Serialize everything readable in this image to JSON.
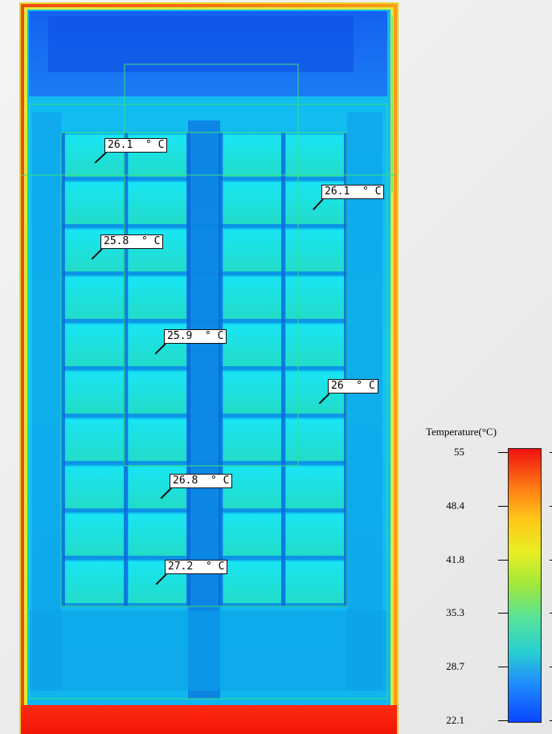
{
  "probes": [
    {
      "id": "p1",
      "label": "26.1  ° C"
    },
    {
      "id": "p2",
      "label": "26.1  ° C"
    },
    {
      "id": "p3",
      "label": "25.8  ° C"
    },
    {
      "id": "p4",
      "label": "25.9  ° C"
    },
    {
      "id": "p5",
      "label": "26  ° C"
    },
    {
      "id": "p6",
      "label": "26.8  ° C"
    },
    {
      "id": "p7",
      "label": "27.2  ° C"
    }
  ],
  "legend": {
    "title": "Temperature(°C)",
    "ticks": [
      "55",
      "48.4",
      "41.8",
      "35.3",
      "28.7",
      "22.1"
    ],
    "min": 22.1,
    "max": 55,
    "colors": [
      "#0a46ff",
      "#1f8dff",
      "#2ad0d0",
      "#55e39a",
      "#9fe83c",
      "#e8ee22",
      "#ffc81a",
      "#ff7a14",
      "#f01010"
    ]
  }
}
